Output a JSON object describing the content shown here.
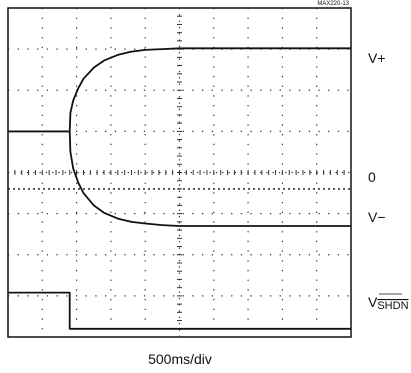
{
  "figure_id": "MAX220-13",
  "time_axis_label": "500ms/div",
  "trace_labels": {
    "vplus": "V+",
    "zero": "0",
    "vminus": "V−",
    "vshdn_prefix": "V",
    "vshdn_sub": "SHDN"
  },
  "chart_data": {
    "type": "line",
    "title": "",
    "xlabel": "500ms/div",
    "ylabel": "",
    "grid": true,
    "x_divisions": 10,
    "y_divisions": 8,
    "xlim": [
      0,
      10
    ],
    "ylim": [
      0,
      8
    ],
    "series": [
      {
        "name": "V+",
        "x": [
          0,
          1.0,
          1.8,
          1.82,
          1.9,
          2.05,
          2.2,
          2.5,
          2.8,
          3.2,
          3.6,
          4.0,
          4.5,
          5.0,
          6.0,
          7.0,
          8.0,
          9.0,
          10.0
        ],
        "y": [
          5.0,
          5.0,
          5.0,
          5.45,
          5.75,
          6.05,
          6.28,
          6.55,
          6.72,
          6.86,
          6.94,
          6.98,
          7.0,
          7.02,
          7.02,
          7.02,
          7.02,
          7.02,
          7.02
        ]
      },
      {
        "name": "V−",
        "x": [
          0,
          1.0,
          1.8,
          1.82,
          1.9,
          2.05,
          2.2,
          2.5,
          2.8,
          3.2,
          3.6,
          4.0,
          4.5,
          5.0,
          6.0,
          7.0,
          8.0,
          9.0,
          10.0
        ],
        "y": [
          5.0,
          5.0,
          5.0,
          4.5,
          4.1,
          3.75,
          3.5,
          3.2,
          3.02,
          2.88,
          2.8,
          2.76,
          2.72,
          2.7,
          2.7,
          2.7,
          2.7,
          2.7,
          2.7
        ]
      },
      {
        "name": "VSHDN",
        "x": [
          0,
          1.8,
          1.8,
          10.0
        ],
        "y": [
          1.08,
          1.08,
          0.2,
          0.2
        ]
      },
      {
        "name": "0",
        "x": [
          0,
          10.0
        ],
        "y": [
          3.6,
          3.6
        ],
        "style": "dashed"
      }
    ]
  }
}
